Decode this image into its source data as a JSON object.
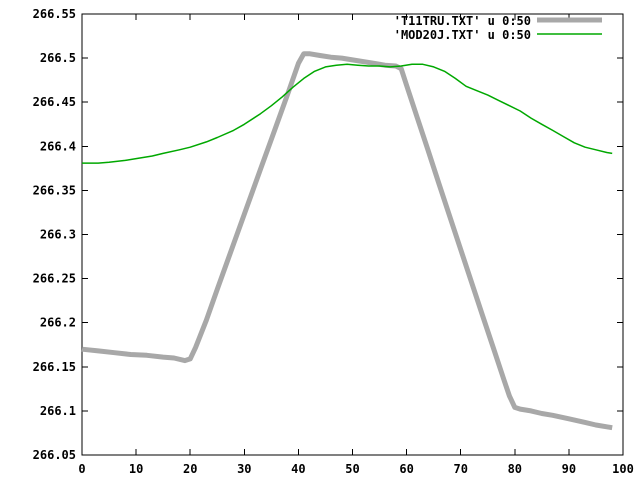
{
  "chart_data": {
    "type": "line",
    "title": "",
    "xlabel": "",
    "ylabel": "",
    "xlim": [
      0,
      100
    ],
    "ylim": [
      266.05,
      266.55
    ],
    "grid": false,
    "legend_position": "top-right-inside",
    "background_color": "#ffffff",
    "border_color": "#000000",
    "x_ticks": [
      {
        "v": 0,
        "label": "0"
      },
      {
        "v": 10,
        "label": "10"
      },
      {
        "v": 20,
        "label": "20"
      },
      {
        "v": 30,
        "label": "30"
      },
      {
        "v": 40,
        "label": "40"
      },
      {
        "v": 50,
        "label": "50"
      },
      {
        "v": 60,
        "label": "60"
      },
      {
        "v": 70,
        "label": "70"
      },
      {
        "v": 80,
        "label": "80"
      },
      {
        "v": 90,
        "label": "90"
      },
      {
        "v": 100,
        "label": "100"
      }
    ],
    "y_ticks": [
      {
        "v": 266.05,
        "label": "266.05"
      },
      {
        "v": 266.1,
        "label": "266.1"
      },
      {
        "v": 266.15,
        "label": "266.15"
      },
      {
        "v": 266.2,
        "label": "266.2"
      },
      {
        "v": 266.25,
        "label": "266.25"
      },
      {
        "v": 266.3,
        "label": "266.3"
      },
      {
        "v": 266.35,
        "label": "266.35"
      },
      {
        "v": 266.4,
        "label": "266.4"
      },
      {
        "v": 266.45,
        "label": "266.45"
      },
      {
        "v": 266.5,
        "label": "266.5"
      },
      {
        "v": 266.55,
        "label": "266.55"
      }
    ],
    "series": [
      {
        "name": "T11TRU.TXT",
        "legend_label": "'T11TRU.TXT' u 0:50",
        "color": "#a8a8a8",
        "line_width": 5,
        "points": [
          [
            0,
            266.17
          ],
          [
            3,
            266.168
          ],
          [
            6,
            266.166
          ],
          [
            9,
            266.164
          ],
          [
            12,
            266.163
          ],
          [
            15,
            266.161
          ],
          [
            17,
            266.16
          ],
          [
            19,
            266.157
          ],
          [
            20,
            266.159
          ],
          [
            21,
            266.172
          ],
          [
            23,
            266.203
          ],
          [
            25,
            266.238
          ],
          [
            28,
            266.289
          ],
          [
            30,
            266.323
          ],
          [
            33,
            266.374
          ],
          [
            35,
            266.408
          ],
          [
            38,
            266.459
          ],
          [
            40,
            266.494
          ],
          [
            41,
            266.505
          ],
          [
            42,
            266.505
          ],
          [
            44,
            266.503
          ],
          [
            46,
            266.501
          ],
          [
            48,
            266.5
          ],
          [
            50,
            266.498
          ],
          [
            52,
            266.496
          ],
          [
            54,
            266.494
          ],
          [
            56,
            266.492
          ],
          [
            58,
            266.491
          ],
          [
            59,
            266.488
          ],
          [
            60,
            266.469
          ],
          [
            62,
            266.432
          ],
          [
            64,
            266.395
          ],
          [
            66,
            266.357
          ],
          [
            68,
            266.32
          ],
          [
            70,
            266.283
          ],
          [
            72,
            266.246
          ],
          [
            74,
            266.209
          ],
          [
            76,
            266.172
          ],
          [
            78,
            266.135
          ],
          [
            79,
            266.117
          ],
          [
            80,
            266.104
          ],
          [
            81,
            266.102
          ],
          [
            83,
            266.1
          ],
          [
            85,
            266.097
          ],
          [
            87,
            266.095
          ],
          [
            90,
            266.091
          ],
          [
            93,
            266.087
          ],
          [
            95,
            266.084
          ],
          [
            97,
            266.082
          ],
          [
            98,
            266.081
          ]
        ]
      },
      {
        "name": "MOD20J.TXT",
        "legend_label": "'MOD20J.TXT' u 0:50",
        "color": "#00a800",
        "line_width": 1.5,
        "points": [
          [
            0,
            266.381
          ],
          [
            3,
            266.381
          ],
          [
            5,
            266.382
          ],
          [
            8,
            266.384
          ],
          [
            10,
            266.386
          ],
          [
            13,
            266.389
          ],
          [
            15,
            266.392
          ],
          [
            18,
            266.396
          ],
          [
            20,
            266.399
          ],
          [
            23,
            266.405
          ],
          [
            25,
            266.41
          ],
          [
            28,
            266.418
          ],
          [
            30,
            266.425
          ],
          [
            33,
            266.437
          ],
          [
            35,
            266.446
          ],
          [
            37,
            266.456
          ],
          [
            39,
            266.467
          ],
          [
            41,
            266.477
          ],
          [
            43,
            266.485
          ],
          [
            45,
            266.49
          ],
          [
            47,
            266.492
          ],
          [
            49,
            266.493
          ],
          [
            51,
            266.492
          ],
          [
            53,
            266.491
          ],
          [
            55,
            266.491
          ],
          [
            57,
            266.49
          ],
          [
            59,
            266.491
          ],
          [
            61,
            266.493
          ],
          [
            63,
            266.493
          ],
          [
            65,
            266.49
          ],
          [
            67,
            266.485
          ],
          [
            69,
            266.477
          ],
          [
            71,
            266.468
          ],
          [
            73,
            266.463
          ],
          [
            75,
            266.458
          ],
          [
            77,
            266.452
          ],
          [
            79,
            266.446
          ],
          [
            81,
            266.44
          ],
          [
            83,
            266.432
          ],
          [
            85,
            266.425
          ],
          [
            87,
            266.418
          ],
          [
            89,
            266.411
          ],
          [
            91,
            266.404
          ],
          [
            93,
            266.399
          ],
          [
            95,
            266.396
          ],
          [
            97,
            266.393
          ],
          [
            98,
            266.392
          ]
        ]
      }
    ]
  }
}
